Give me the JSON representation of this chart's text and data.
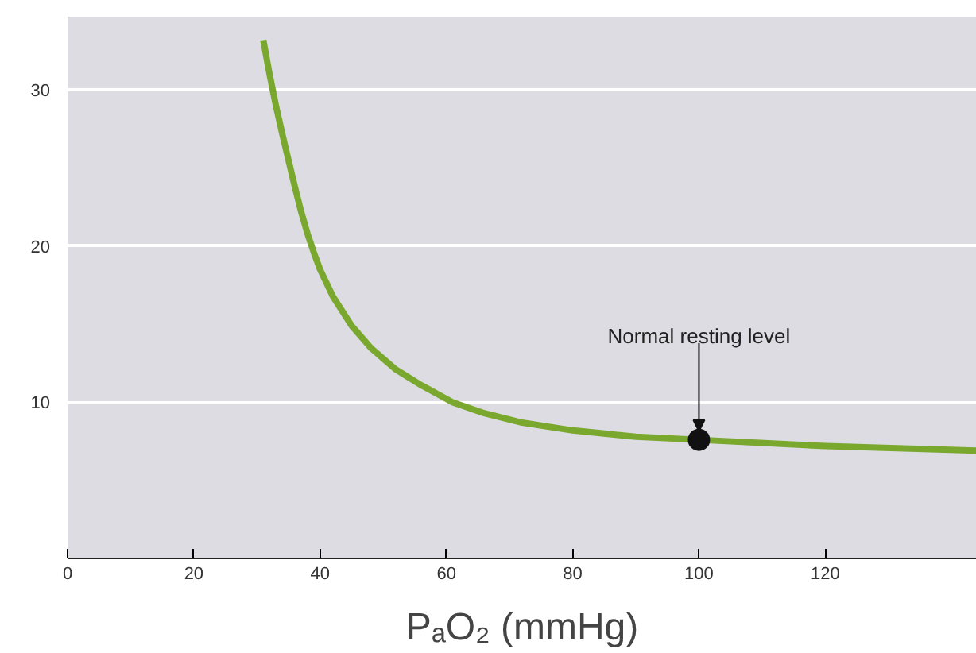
{
  "chart_data": {
    "type": "line",
    "xlabel": "PₐO₂ (mmHg)",
    "xlim": [
      0,
      144
    ],
    "ylim": [
      0,
      34.7
    ],
    "xticks": [
      0,
      20,
      40,
      60,
      80,
      100,
      120
    ],
    "yticks": [
      10,
      20,
      30
    ],
    "grid": "y",
    "series": [
      {
        "color": "#7aa82e",
        "x": [
          31,
          32,
          33,
          34,
          35,
          36,
          37,
          38,
          39,
          40,
          42,
          45,
          48,
          52,
          56,
          61,
          66,
          72,
          80,
          90,
          100,
          120,
          144
        ],
        "values": [
          33.2,
          31,
          29,
          27.2,
          25.5,
          23.8,
          22.2,
          20.8,
          19.6,
          18.5,
          16.8,
          14.9,
          13.5,
          12.1,
          11.1,
          10,
          9.3,
          8.7,
          8.2,
          7.8,
          7.6,
          7.2,
          6.9
        ]
      },
      {
        "type": "scatter",
        "color": "#111111",
        "x": [
          100
        ],
        "values": [
          7.6
        ]
      }
    ],
    "annotations": [
      {
        "text": "Normal resting level",
        "x": 100,
        "y": 7.6
      }
    ]
  }
}
